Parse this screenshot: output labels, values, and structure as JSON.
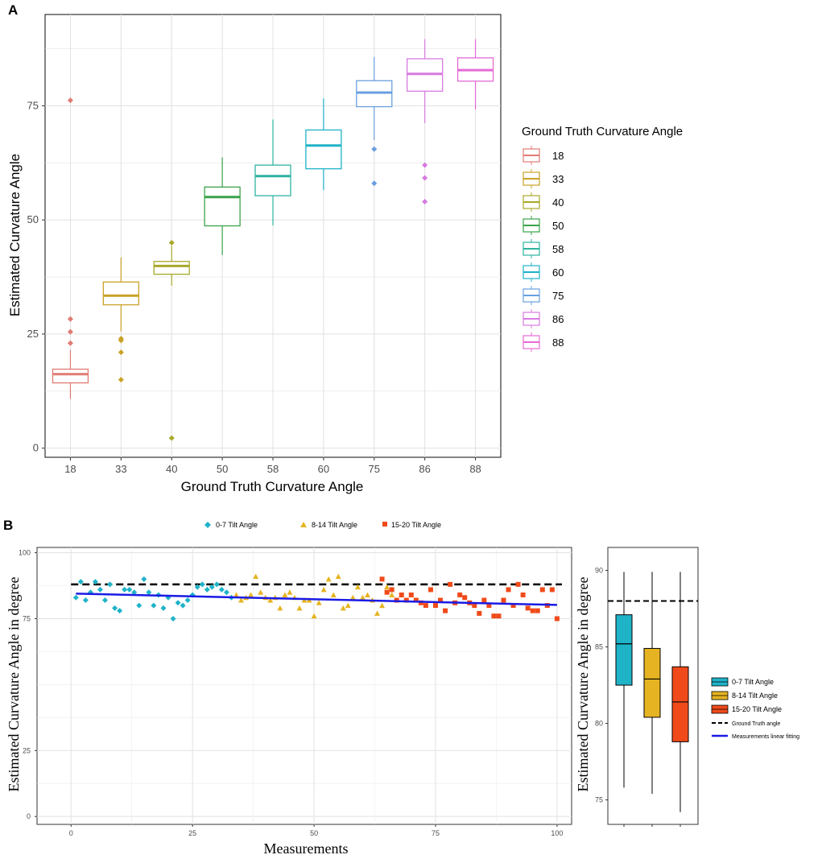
{
  "colors": {
    "boxA": [
      "#e07b73",
      "#c9a227",
      "#a8a82a",
      "#3aa34a",
      "#2cb3a0",
      "#1fb3c8",
      "#6a9fe0",
      "#d77be0",
      "#e56ad6"
    ],
    "grid": "#e5e5e5",
    "teal": "#1fb3c8",
    "gold": "#e6b422",
    "orange": "#f04a1a",
    "blue": "#1a1ae6"
  },
  "chart_data": [
    {
      "panel": "A",
      "type": "boxplot",
      "xlabel": "Ground Truth Curvature Angle",
      "ylabel": "Estimated Curvature Angle",
      "categories": [
        "18",
        "33",
        "40",
        "50",
        "58",
        "60",
        "75",
        "86",
        "88"
      ],
      "ylim": [
        -2,
        95
      ],
      "yticks": [
        0,
        25,
        50,
        75
      ],
      "ytick_labels": [
        "0",
        "25",
        "50",
        "75"
      ],
      "legend_title": "Ground Truth Curvature Angle",
      "boxes": [
        {
          "min": 10.8,
          "q1": 14.3,
          "median": 16.2,
          "q3": 17.3,
          "max": 21.5,
          "outliers": [
            76.2,
            28.3,
            25.5,
            23.0
          ]
        },
        {
          "min": 25.6,
          "q1": 31.4,
          "median": 33.4,
          "q3": 36.4,
          "max": 41.8,
          "outliers": [
            24.0,
            23.6,
            21.0,
            15.0
          ]
        },
        {
          "min": 35.6,
          "q1": 38.1,
          "median": 39.9,
          "q3": 40.9,
          "max": 44.3,
          "outliers": [
            45.0,
            2.2
          ]
        },
        {
          "min": 42.3,
          "q1": 48.7,
          "median": 55.0,
          "q3": 57.2,
          "max": 63.7,
          "outliers": []
        },
        {
          "min": 48.8,
          "q1": 55.3,
          "median": 59.6,
          "q3": 62.0,
          "max": 72.0,
          "outliers": []
        },
        {
          "min": 56.5,
          "q1": 61.2,
          "median": 66.3,
          "q3": 69.7,
          "max": 76.6,
          "outliers": []
        },
        {
          "min": 67.5,
          "q1": 74.8,
          "median": 77.9,
          "q3": 80.5,
          "max": 85.7,
          "outliers": [
            65.5,
            58.0
          ]
        },
        {
          "min": 71.2,
          "q1": 78.2,
          "median": 82.0,
          "q3": 85.3,
          "max": 89.6,
          "outliers": [
            62.0,
            59.2,
            54.0
          ]
        },
        {
          "min": 74.2,
          "q1": 80.4,
          "median": 82.8,
          "q3": 85.5,
          "max": 89.6,
          "outliers": []
        }
      ]
    },
    {
      "panel": "B",
      "type": "scatter",
      "xlabel": "Measurements",
      "ylabel": "Estimated Curvature Angle in degree",
      "xlim": [
        -7,
        103
      ],
      "ylim": [
        -3,
        102
      ],
      "xticks": [
        0,
        25,
        50,
        75,
        100
      ],
      "xtick_labels": [
        "0",
        "25",
        "50",
        "75",
        "100"
      ],
      "yticks": [
        0,
        25,
        75,
        100
      ],
      "ytick_labels": [
        "0",
        "25",
        "75",
        "100"
      ],
      "ground_truth": 88,
      "fit_line": {
        "x": [
          1,
          100
        ],
        "y": [
          84.5,
          80.2
        ]
      },
      "series": [
        {
          "name": "0-7 Tilt Angle",
          "shape": "diamond",
          "x": [
            1,
            2,
            3,
            4,
            5,
            6,
            7,
            8,
            9,
            10,
            11,
            12,
            13,
            14,
            15,
            16,
            17,
            18,
            19,
            20,
            21,
            22,
            23,
            24,
            25,
            26,
            27,
            28,
            29,
            30,
            31,
            32,
            33
          ],
          "y": [
            83,
            89,
            82,
            85,
            89,
            86,
            82,
            88,
            79,
            78,
            86,
            86,
            85,
            80,
            90,
            85,
            80,
            84,
            79,
            83,
            75,
            81,
            80,
            82,
            84,
            87,
            88,
            86,
            87,
            88,
            86,
            85,
            83
          ]
        },
        {
          "name": "8-14 Tilt Angle",
          "shape": "triangle",
          "x": [
            34,
            35,
            36,
            37,
            38,
            39,
            40,
            41,
            42,
            43,
            44,
            45,
            46,
            47,
            48,
            49,
            50,
            51,
            52,
            53,
            54,
            55,
            56,
            57,
            58,
            59,
            60,
            61,
            62,
            63,
            64,
            65,
            66
          ],
          "y": [
            84,
            82,
            83,
            84,
            91,
            85,
            83,
            82,
            83,
            79,
            84,
            85,
            83,
            79,
            82,
            82,
            76,
            81,
            86,
            90,
            84,
            91,
            79,
            80,
            83,
            87,
            83,
            84,
            82,
            77,
            80,
            87,
            84
          ]
        },
        {
          "name": "15-20 Tilt Angle",
          "shape": "square",
          "x": [
            64,
            65,
            66,
            67,
            68,
            69,
            70,
            71,
            72,
            73,
            74,
            75,
            76,
            77,
            78,
            79,
            80,
            81,
            82,
            83,
            84,
            85,
            86,
            87,
            88,
            89,
            90,
            91,
            92,
            93,
            94,
            95,
            96,
            97,
            98,
            99,
            100
          ],
          "y": [
            90,
            85,
            86,
            82,
            84,
            82,
            84,
            82,
            81,
            80,
            86,
            80,
            82,
            78,
            88,
            81,
            84,
            83,
            81,
            80,
            77,
            82,
            80,
            76,
            76,
            82,
            86,
            80,
            88,
            84,
            79,
            78,
            78,
            86,
            80,
            86,
            75
          ]
        }
      ]
    },
    {
      "panel": "B-inset",
      "type": "boxplot",
      "ylabel": "Estimated Curvature Angle in degree",
      "ylim": [
        73.4,
        91.5
      ],
      "yticks": [
        75,
        80,
        85,
        90
      ],
      "ytick_labels": [
        "75",
        "80",
        "85",
        "90"
      ],
      "ground_truth": 88,
      "boxes": [
        {
          "name": "0-7 Tilt Angle",
          "min": 75.8,
          "q1": 82.5,
          "median": 85.2,
          "q3": 87.1,
          "max": 89.9
        },
        {
          "name": "8-14 Tilt Angle",
          "min": 75.4,
          "q1": 80.4,
          "median": 82.9,
          "q3": 84.9,
          "max": 89.9
        },
        {
          "name": "15-20 Tilt Angle",
          "min": 74.2,
          "q1": 78.8,
          "median": 81.4,
          "q3": 83.7,
          "max": 89.9
        }
      ],
      "legend": [
        "0-7 Tilt Angle",
        "8-14 Tilt Angle",
        "15-20 Tilt Angle",
        "Ground Truth angle",
        "Measurements linear fitting"
      ]
    }
  ]
}
